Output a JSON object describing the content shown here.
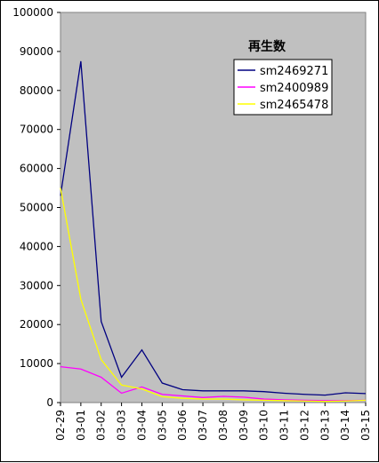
{
  "chart_data": {
    "type": "line",
    "title": "",
    "xlabel": "",
    "ylabel": "",
    "ylim": [
      0,
      100000
    ],
    "yticks": [
      0,
      10000,
      20000,
      30000,
      40000,
      50000,
      60000,
      70000,
      80000,
      90000,
      100000
    ],
    "categories": [
      "02-29",
      "03-01",
      "03-02",
      "03-03",
      "03-04",
      "03-05",
      "03-06",
      "03-07",
      "03-08",
      "03-09",
      "03-10",
      "03-11",
      "03-12",
      "03-13",
      "03-14",
      "03-15"
    ],
    "legend_title": "再生数",
    "legend_position": "top-right",
    "plot_background": "#c0c0c0",
    "series": [
      {
        "name": "sm2469271",
        "color": "#000080",
        "values": [
          53000,
          87500,
          20800,
          6500,
          13500,
          5000,
          3300,
          3000,
          3000,
          3000,
          2800,
          2400,
          2100,
          1900,
          2500,
          2300
        ]
      },
      {
        "name": "sm2400989",
        "color": "#ff00ff",
        "values": [
          9200,
          8600,
          6500,
          2400,
          4000,
          2100,
          1700,
          1300,
          1600,
          1400,
          900,
          700,
          600,
          500,
          500,
          600
        ]
      },
      {
        "name": "sm2465478",
        "color": "#ffff00",
        "values": [
          55000,
          26500,
          11000,
          4500,
          3500,
          1500,
          1100,
          900,
          900,
          700,
          600,
          500,
          400,
          300,
          400,
          600
        ]
      }
    ]
  }
}
